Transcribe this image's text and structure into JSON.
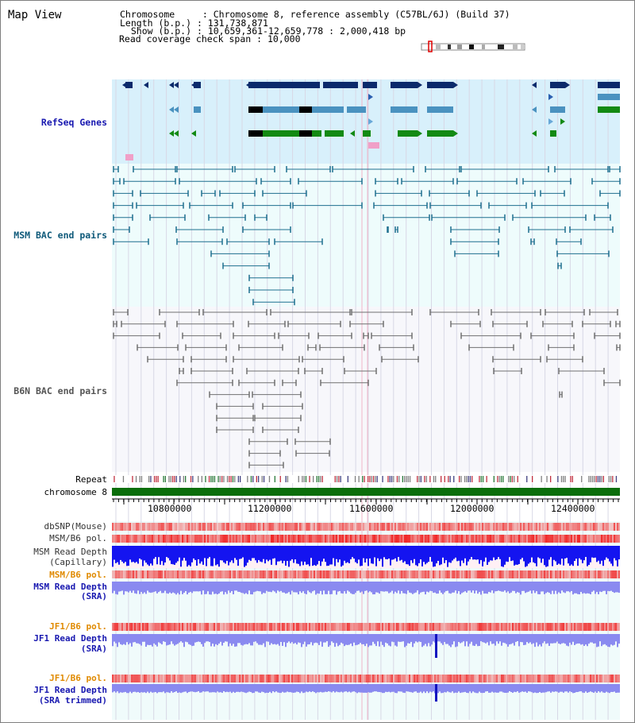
{
  "title": "Map View",
  "header": {
    "chromosome_key": "Chromosome",
    "chromosome_val": "Chromosome 8, reference assembly (C57BL/6J) (Build 37)",
    "length_key": "Length (b.p.)",
    "length_val": "131,738,871",
    "show_key": "Show (b.p.)",
    "show_val": "10,659,361-12,659,778 : 2,000,418 bp",
    "span_key": "Read coverage check span",
    "span_val": "10,000"
  },
  "tracks": {
    "refseq": "RefSeq Genes",
    "msm_bac": "MSM BAC end pairs",
    "b6n_bac": "B6N BAC end pairs",
    "repeat": "Repeat",
    "chromosome": "chromosome 8",
    "dbsnp": "dbSNP(Mouse)",
    "msm_b6_pol_1": "MSM/B6 pol.",
    "msm_depth_cap_1": "MSM Read Depth",
    "msm_depth_cap_2": "(Capillary)",
    "msm_b6_pol_2": "MSM/B6 pol.",
    "msm_depth_sra_1": "MSM Read Depth",
    "msm_depth_sra_2": "(SRA)",
    "jf1_b6_pol_1": "JF1/B6 pol.",
    "jf1_depth_sra_1": "JF1 Read Depth",
    "jf1_depth_sra_2": "(SRA)",
    "jf1_b6_pol_2": "JF1/B6 pol.",
    "jf1_depth_trim_1": "JF1 Read Depth",
    "jf1_depth_trim_2": "(SRA trimmed)"
  },
  "axis": {
    "ticks": [
      "10800000",
      "11200000",
      "11600000",
      "12000000",
      "12400000"
    ]
  },
  "colors": {
    "refseq_bg": "#d8f0fb",
    "bac_bg": "#eefcfc",
    "b6n_bg": "#f7f7fb",
    "gene_dark": "#0b2a6b",
    "gene_mid": "#4a92c0",
    "gene_green": "#138a13",
    "msm_pair": "#1e6f8f",
    "b6n_pair": "#707070",
    "chrom_green": "#0b6e0b",
    "depth_blue": "#1414f0",
    "depth_light": "#8a8af0"
  }
}
